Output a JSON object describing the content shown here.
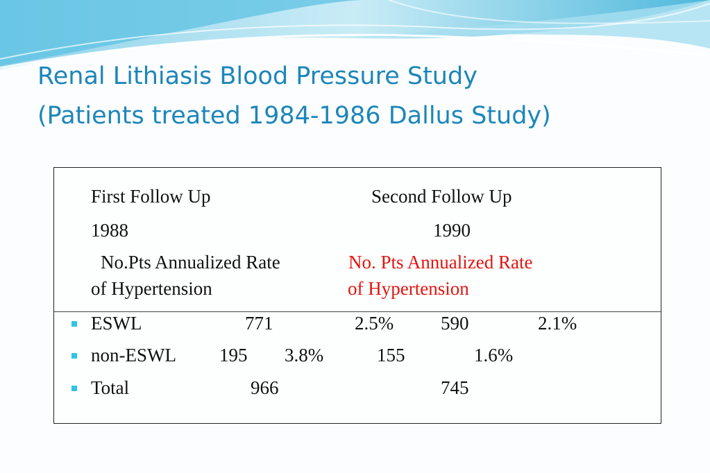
{
  "slide": {
    "title_line1": "Renal Lithiasis Blood Pressure Study",
    "title_line2": "(Patients treated 1984-1986 Dallus Study)"
  },
  "table": {
    "first_follow_up_label": "First Follow Up",
    "second_follow_up_label": "Second Follow Up",
    "first_year": "1988",
    "second_year": "1990",
    "first_header_line1": "No.Pts  Annualized Rate",
    "first_header_line2": "of Hypertension",
    "second_header_line1": "No. Pts  Annualized Rate",
    "second_header_line2": "of  Hypertension",
    "rows": [
      {
        "label": "ESWL",
        "pts1": "771",
        "rate1": "2.5%",
        "pts2": "590",
        "rate2": "2.1%"
      },
      {
        "label": "non-ESWL",
        "pts1": "195",
        "rate1": "3.8%",
        "pts2": "155",
        "rate2": "1.6%"
      },
      {
        "label": "Total",
        "pts1": "966",
        "rate1": "",
        "pts2": "745",
        "rate2": ""
      }
    ]
  },
  "colors": {
    "title": "#1d86b9",
    "highlight": "#e3140f",
    "bullet": "#2cc6e6"
  }
}
